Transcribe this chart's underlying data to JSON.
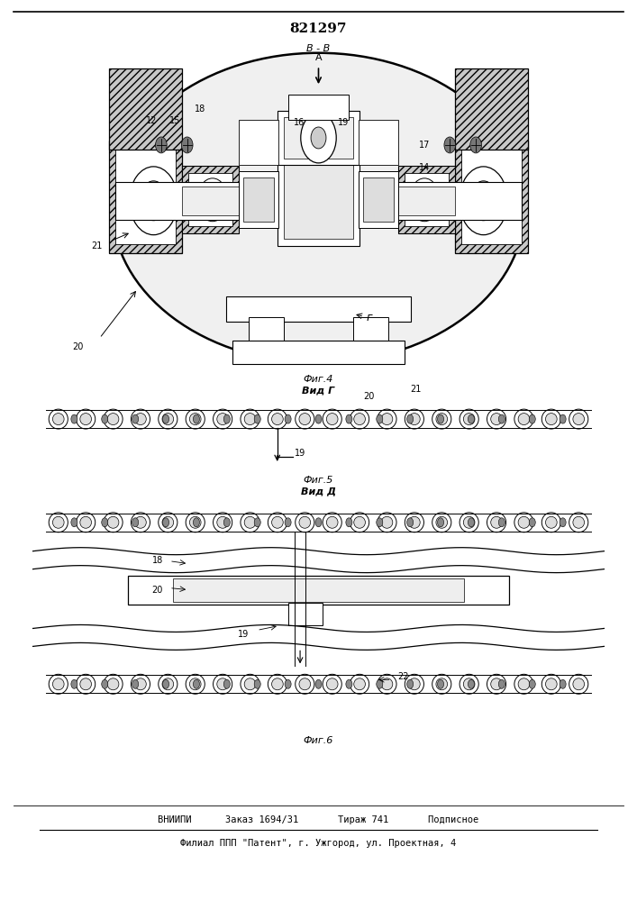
{
  "title": "821297",
  "title_fontsize": 11,
  "background_color": "#ffffff",
  "footer_line1": "ВНИИПИ      Заказ 1694/31       Тираж 741       Подписное",
  "footer_line2": "Филиал ППП \"Патент\", г. Ужгород, ул. Проектная, 4",
  "fig4_label": "Фиг.4",
  "fig4_view": "Вид Г",
  "fig5_label": "Фиг.5",
  "fig5_view": "Вид Д",
  "fig6_label": "Фиг.6",
  "view_BB": "В - В",
  "view_arrow": "А"
}
